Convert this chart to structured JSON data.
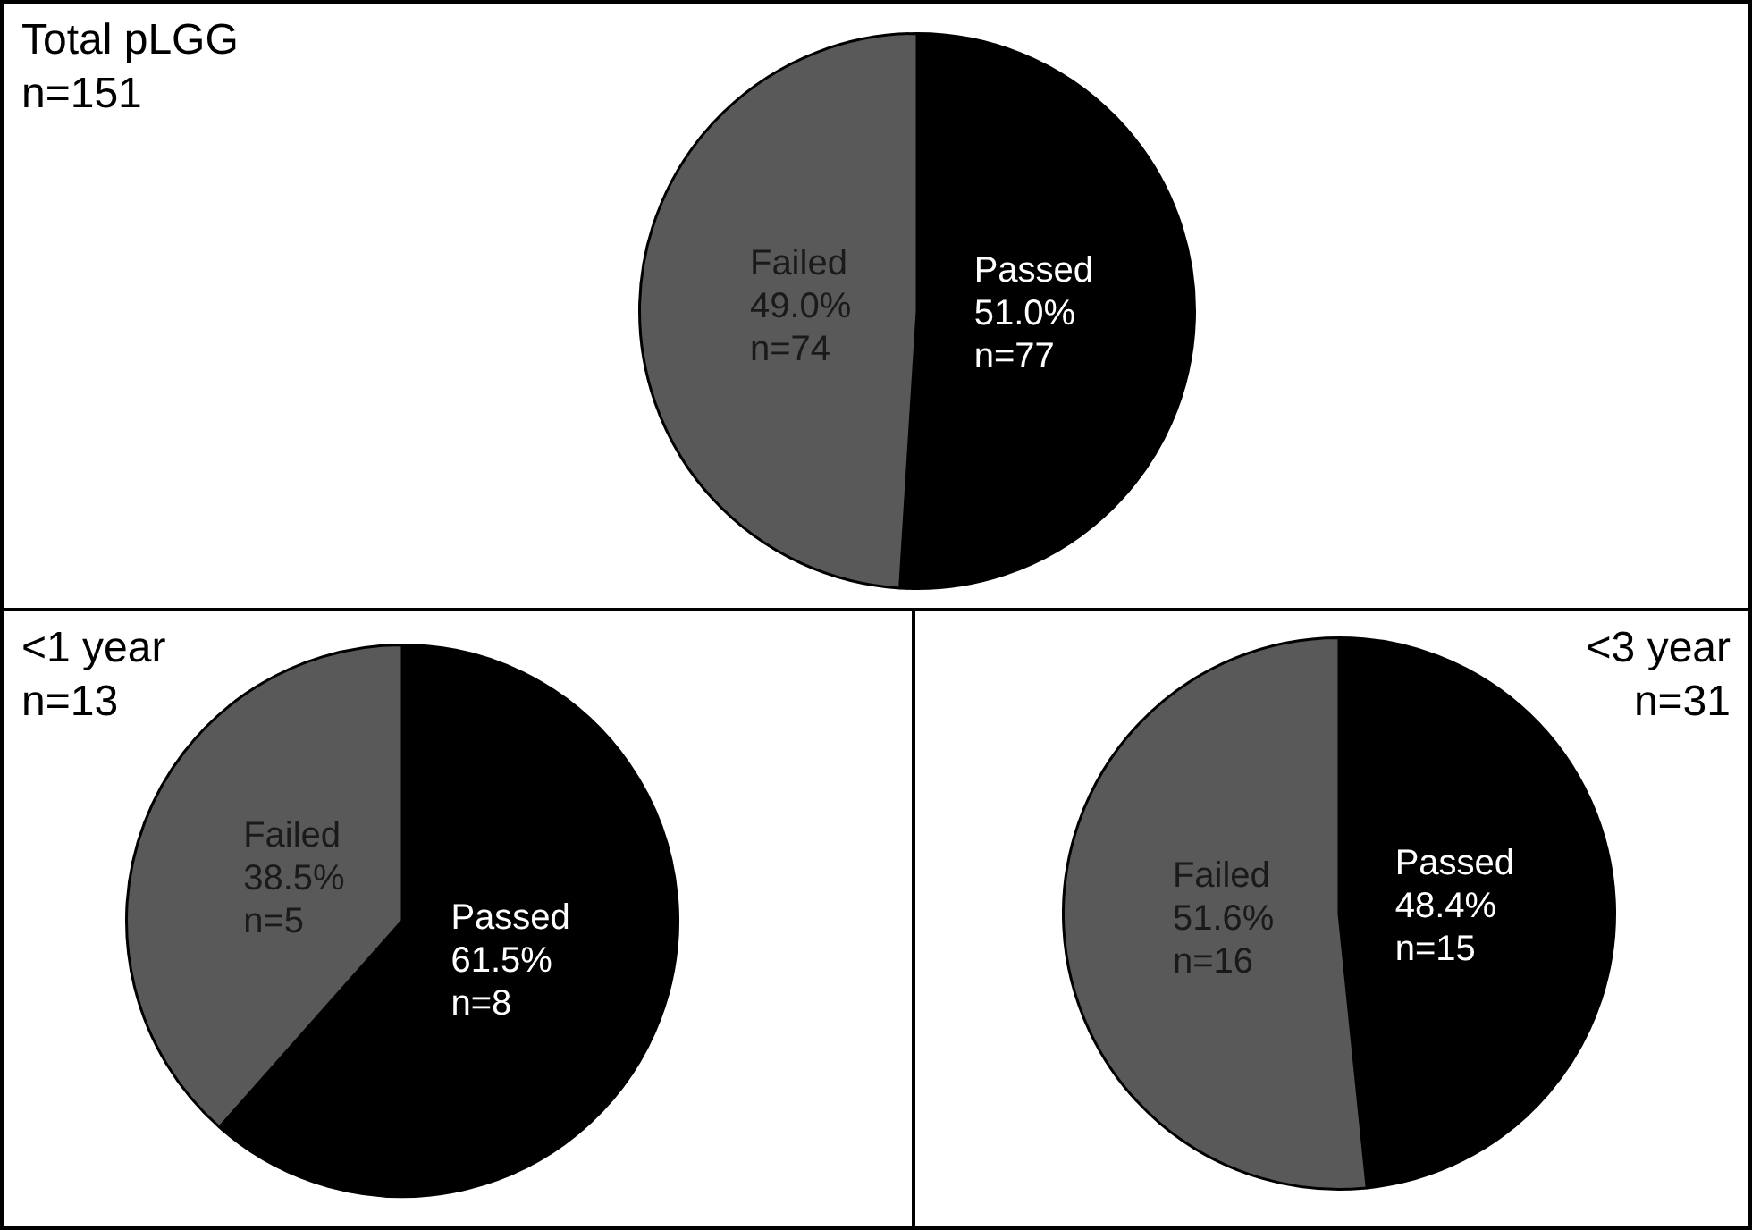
{
  "chart_data": [
    {
      "type": "pie",
      "title": "Total pLGG",
      "subtitle": "n=151",
      "categories": [
        "Passed",
        "Failed"
      ],
      "values": [
        77,
        74
      ],
      "colors": [
        "#000000",
        "#595959"
      ],
      "value_labels": [
        "51.0%\nn=77",
        "49.0%\nn=74"
      ]
    },
    {
      "type": "pie",
      "title": "<1 year",
      "subtitle": "n=13",
      "categories": [
        "Passed",
        "Failed"
      ],
      "values": [
        8,
        5
      ],
      "colors": [
        "#000000",
        "#595959"
      ],
      "value_labels": [
        "61.5%\nn=8",
        "38.5%\nn=5"
      ]
    },
    {
      "type": "pie",
      "title": "<3 year",
      "subtitle": "n=31",
      "categories": [
        "Passed",
        "Failed"
      ],
      "values": [
        15,
        16
      ],
      "colors": [
        "#000000",
        "#595959"
      ],
      "value_labels": [
        "48.4%\nn=15",
        "51.6%\nn=16"
      ]
    }
  ]
}
